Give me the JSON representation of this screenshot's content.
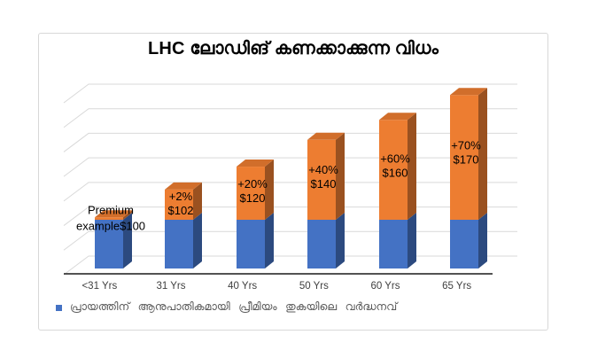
{
  "chart": {
    "title": "LHC ലോഡിങ് കണക്കാക്കുന്ന വിധം",
    "legend": {
      "label": "പ്രായത്തിന് ആനുപാതികമായി പ്രീമിയം തുകയിലെ വർദ്ധനവ്",
      "swatch_color": "#4472C4"
    },
    "colors": {
      "blue_front": "#4472C4",
      "blue_side": "#2C4A7F",
      "orange_front": "#ED7D31",
      "orange_side": "#9A5120",
      "orange_top": "#D16E2B",
      "gridline": "#D9D9D9",
      "axis_line": "#1a1a1a",
      "data_label": "#000000",
      "category_label": "#404040"
    }
  },
  "chart_data": {
    "type": "bar",
    "subtype": "3d-stacked-column",
    "title": "LHC ലോഡിങ് കണക്കാക്കുന്ന വിധം",
    "categories": [
      "<31 Yrs",
      "31 Yrs",
      "40 Yrs",
      "50 Yrs",
      "60 Yrs",
      "65 Yrs"
    ],
    "series": [
      {
        "name": "പ്രായത്തിന് ആനുപാതികമായി പ്രീമിയം തുകയിലെ വർദ്ധനവ്",
        "color": "#4472C4",
        "values": [
          100,
          100,
          100,
          100,
          100,
          100
        ]
      },
      {
        "name": "",
        "color": "#ED7D31",
        "values": [
          0,
          2,
          20,
          40,
          60,
          70
        ]
      }
    ],
    "bar_labels": [
      [
        "Premium",
        "example$100"
      ],
      [
        "+2%",
        "$102"
      ],
      [
        "+20%",
        "$120"
      ],
      [
        "+40%",
        "$140"
      ],
      [
        "+60%",
        "$160"
      ],
      [
        "+70%",
        "$170"
      ]
    ],
    "base_visual_units": 100,
    "loading_visual_units": [
      5,
      62,
      109,
      164,
      205,
      256
    ],
    "not_to_scale_note": "orange segments are drawn larger than labeled percentages",
    "legend_position": "bottom-left",
    "grid": "horizontal-back-wall",
    "axis_labels_visible": [
      "<31 Yrs",
      "31 Yrs",
      "40 Yrs",
      "50 Yrs",
      "60 Yrs",
      "65 Yrs"
    ]
  }
}
